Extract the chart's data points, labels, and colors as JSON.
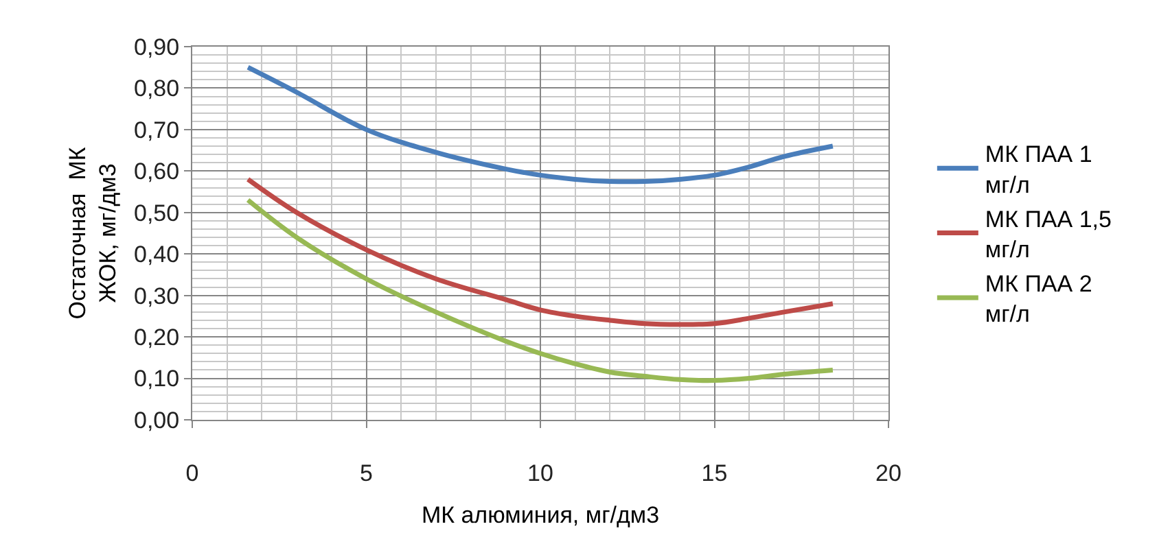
{
  "chart_data": {
    "type": "line",
    "xlabel": "МК алюминия, мг/дм3",
    "ylabel": "Остаточная  МК ЖОК, мг/дм3",
    "x": [
      1.6,
      3,
      5,
      7,
      9,
      10,
      11,
      12,
      13,
      14,
      15,
      16,
      17,
      18.4
    ],
    "series": [
      {
        "name": "МК ПАА 1 мг/л",
        "color": "#4a7ebb",
        "values": [
          0.85,
          0.79,
          0.7,
          0.645,
          0.605,
          0.59,
          0.58,
          0.575,
          0.575,
          0.58,
          0.59,
          0.61,
          0.635,
          0.66
        ]
      },
      {
        "name": "МК ПАА 1,5 мг/л",
        "color": "#be4b48",
        "values": [
          0.58,
          0.5,
          0.41,
          0.34,
          0.29,
          0.265,
          0.25,
          0.24,
          0.232,
          0.23,
          0.232,
          0.245,
          0.26,
          0.28
        ]
      },
      {
        "name": "МК ПАА 2 мг/л",
        "color": "#98b954",
        "values": [
          0.53,
          0.44,
          0.34,
          0.26,
          0.19,
          0.16,
          0.135,
          0.115,
          0.105,
          0.097,
          0.095,
          0.1,
          0.11,
          0.12
        ]
      }
    ],
    "xlim": [
      0,
      20
    ],
    "xticks": [
      0,
      5,
      10,
      15,
      20
    ],
    "ylim": [
      0,
      0.9
    ],
    "yticks": [
      {
        "value": 0,
        "label": "0,00"
      },
      {
        "value": 0.1,
        "label": "0,10"
      },
      {
        "value": 0.2,
        "label": "0,20"
      },
      {
        "value": 0.3,
        "label": "0,30"
      },
      {
        "value": 0.4,
        "label": "0,40"
      },
      {
        "value": 0.5,
        "label": "0,50"
      },
      {
        "value": 0.6,
        "label": "0,60"
      },
      {
        "value": 0.7,
        "label": "0,70"
      },
      {
        "value": 0.8,
        "label": "0,80"
      },
      {
        "value": 0.9,
        "label": "0,90"
      }
    ],
    "grid": true,
    "legend": "right",
    "marker": "none",
    "line_style": "solid"
  }
}
